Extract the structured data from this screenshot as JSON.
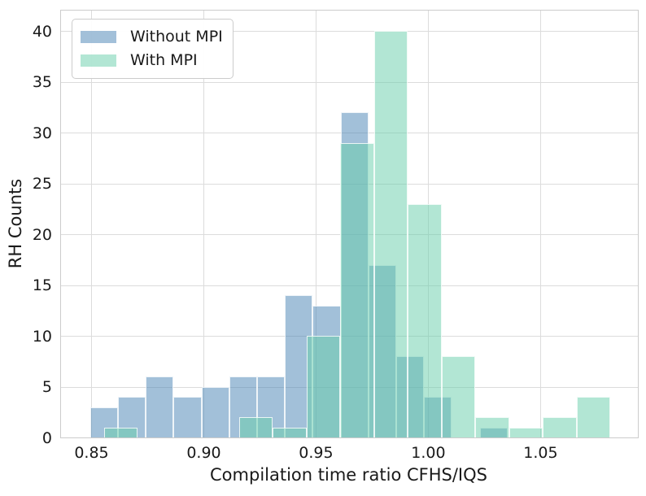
{
  "style": {
    "background": "#ffffff",
    "grid_color": "#dcdcdc",
    "spine_color": "#cccccc",
    "text_color": "#1a1a1a",
    "without_mpi_fill": "rgba(70,130,180,0.5)",
    "with_mpi_fill": "rgba(102,205,170,0.5)",
    "bar_edge": "rgba(255,255,255,0.82)"
  },
  "legend": {
    "items": [
      {
        "label": "Without MPI",
        "color": "rgba(70,130,180,0.5)"
      },
      {
        "label": "With MPI",
        "color": "rgba(102,205,170,0.5)"
      }
    ]
  },
  "chart_data": {
    "type": "bar",
    "subtype": "overlapping-histogram",
    "title": "",
    "xlabel": "Compilation time ratio CFHS/IQS",
    "ylabel": "RH Counts",
    "xlim": [
      0.8366,
      1.0935
    ],
    "ylim": [
      0,
      42
    ],
    "grid": true,
    "legend_position": "upper-left",
    "xticks": {
      "values": [
        0.85,
        0.9,
        0.95,
        1.0,
        1.05
      ],
      "labels": [
        "0.85",
        "0.90",
        "0.95",
        "1.00",
        "1.05"
      ]
    },
    "yticks": {
      "values": [
        0,
        5,
        10,
        15,
        20,
        25,
        30,
        35,
        40
      ],
      "labels": [
        "0",
        "5",
        "10",
        "15",
        "20",
        "25",
        "30",
        "35",
        "40"
      ]
    },
    "series": [
      {
        "name": "Without MPI",
        "slug": "without-mpi",
        "bin_start": 0.8496,
        "bin_width": 0.012391,
        "counts": [
          3,
          4,
          6,
          4,
          5,
          6,
          6,
          14,
          13,
          32,
          17,
          8,
          4,
          0,
          1
        ],
        "fill": "rgba(70,130,180,0.5)"
      },
      {
        "name": "With MPI",
        "slug": "with-mpi",
        "bin_start": 0.8558,
        "bin_width": 0.015036,
        "counts": [
          1,
          0,
          0,
          0,
          2,
          1,
          10,
          29,
          40,
          23,
          8,
          2,
          1,
          2,
          4
        ],
        "fill": "rgba(102,205,170,0.5)"
      }
    ]
  }
}
